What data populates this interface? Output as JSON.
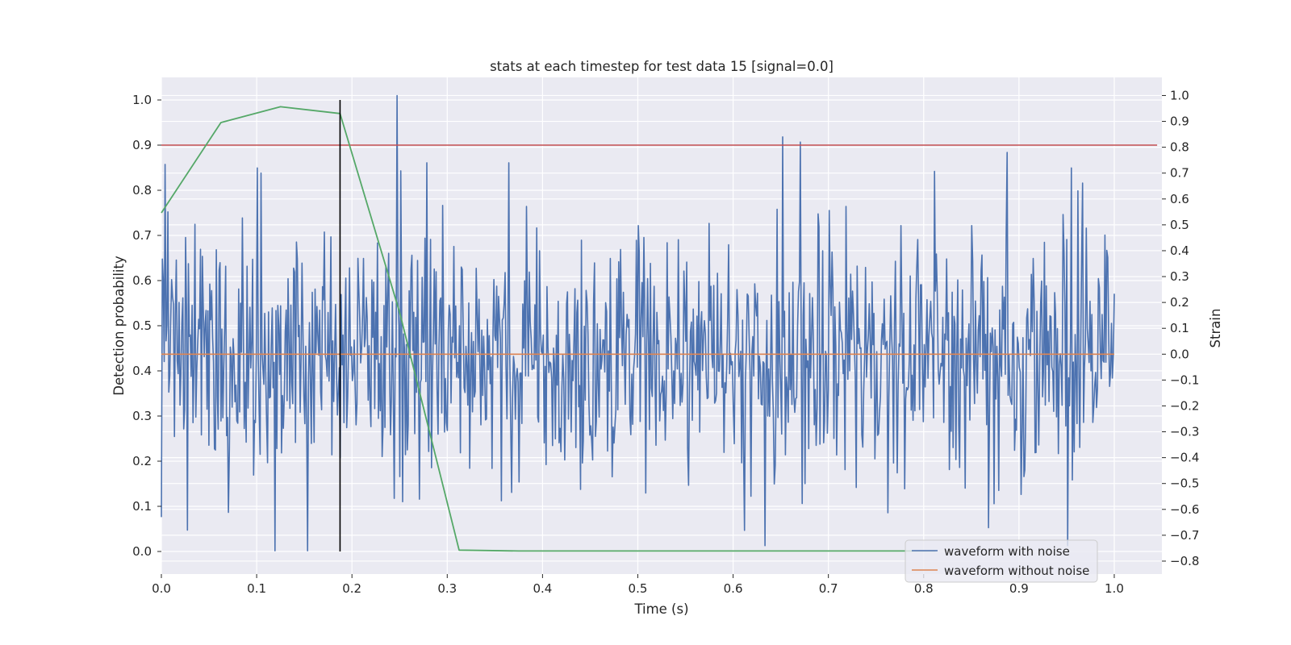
{
  "chart_data": {
    "type": "line",
    "title": "stats at each timestep for test data 15 [signal=0.0]",
    "xlabel": "Time (s)",
    "ylabel": "Detection probability",
    "y2label": "Strain",
    "xlim": [
      0.0,
      1.05
    ],
    "ylim": [
      -0.05,
      1.05
    ],
    "y2lim": [
      -0.85,
      1.07
    ],
    "grid": true,
    "xticks": [
      0.0,
      0.1,
      0.2,
      0.3,
      0.4,
      0.5,
      0.6,
      0.7,
      0.8,
      0.9,
      1.0
    ],
    "xtick_labels": [
      "0.0",
      "0.1",
      "0.2",
      "0.3",
      "0.4",
      "0.5",
      "0.6",
      "0.7",
      "0.8",
      "0.9",
      "1.0"
    ],
    "yticks": [
      0.0,
      0.1,
      0.2,
      0.3,
      0.4,
      0.5,
      0.6,
      0.7,
      0.8,
      0.9,
      1.0
    ],
    "ytick_labels": [
      "0.0",
      "0.1",
      "0.2",
      "0.3",
      "0.4",
      "0.5",
      "0.6",
      "0.7",
      "0.8",
      "0.9",
      "1.0"
    ],
    "y2ticks": [
      -0.8,
      -0.7,
      -0.6,
      -0.5,
      -0.4,
      -0.3,
      -0.2,
      -0.1,
      0.0,
      0.1,
      0.2,
      0.3,
      0.4,
      0.5,
      0.6,
      0.7,
      0.8,
      0.9,
      1.0
    ],
    "y2tick_labels": [
      "−0.8",
      "−0.7",
      "−0.6",
      "−0.5",
      "−0.4",
      "−0.3",
      "−0.2",
      "−0.1",
      "0.0",
      "0.1",
      "0.2",
      "0.3",
      "0.4",
      "0.5",
      "0.6",
      "0.7",
      "0.8",
      "0.9",
      "1.0"
    ],
    "series": [
      {
        "name": "detection probability",
        "axis": "left",
        "color": "#55a868",
        "x": [
          0.0,
          0.0625,
          0.125,
          0.1875,
          0.25,
          0.3125,
          0.375,
          0.4375,
          0.5,
          0.5625,
          0.625,
          0.6875,
          0.75,
          0.8125
        ],
        "y": [
          0.75,
          0.95,
          0.985,
          0.97,
          0.53,
          0.003,
          0.001,
          0.001,
          0.001,
          0.001,
          0.001,
          0.001,
          0.001,
          0.001
        ]
      },
      {
        "name": "waveform with noise",
        "axis": "right",
        "color": "#4c72b0",
        "x_start": 0.0,
        "x_end": 1.0,
        "count": 1024,
        "seed": 15,
        "std": 0.24,
        "peaks": [
          {
            "x": 0.0,
            "y": -0.63
          },
          {
            "x": 0.007,
            "y": 0.55
          },
          {
            "x": 0.027,
            "y": -0.68
          },
          {
            "x": 0.101,
            "y": 0.72
          },
          {
            "x": 0.105,
            "y": 0.7
          },
          {
            "x": 0.119,
            "y": -0.76
          },
          {
            "x": 0.153,
            "y": -0.76
          },
          {
            "x": 0.247,
            "y": 1.0
          },
          {
            "x": 0.253,
            "y": -0.57
          },
          {
            "x": 0.652,
            "y": 0.84
          },
          {
            "x": 0.633,
            "y": -0.74
          },
          {
            "x": 0.671,
            "y": 0.82
          },
          {
            "x": 0.888,
            "y": 0.78
          },
          {
            "x": 0.955,
            "y": 0.72
          }
        ]
      },
      {
        "name": "waveform without noise",
        "axis": "right",
        "color": "#dd8452",
        "x": [
          0.0,
          1.0
        ],
        "y": [
          0.0,
          0.0
        ]
      }
    ],
    "threshold": {
      "name": "threshold",
      "axis": "left",
      "value": 0.9,
      "color": "#c44e52"
    },
    "marker_line": {
      "name": "event marker",
      "axis": "left",
      "x": 0.1875,
      "y": [
        0.0,
        1.0
      ],
      "color": "#000000"
    },
    "legend": {
      "placement": "lower-right",
      "entries": [
        "waveform with noise",
        "waveform without noise"
      ]
    }
  }
}
